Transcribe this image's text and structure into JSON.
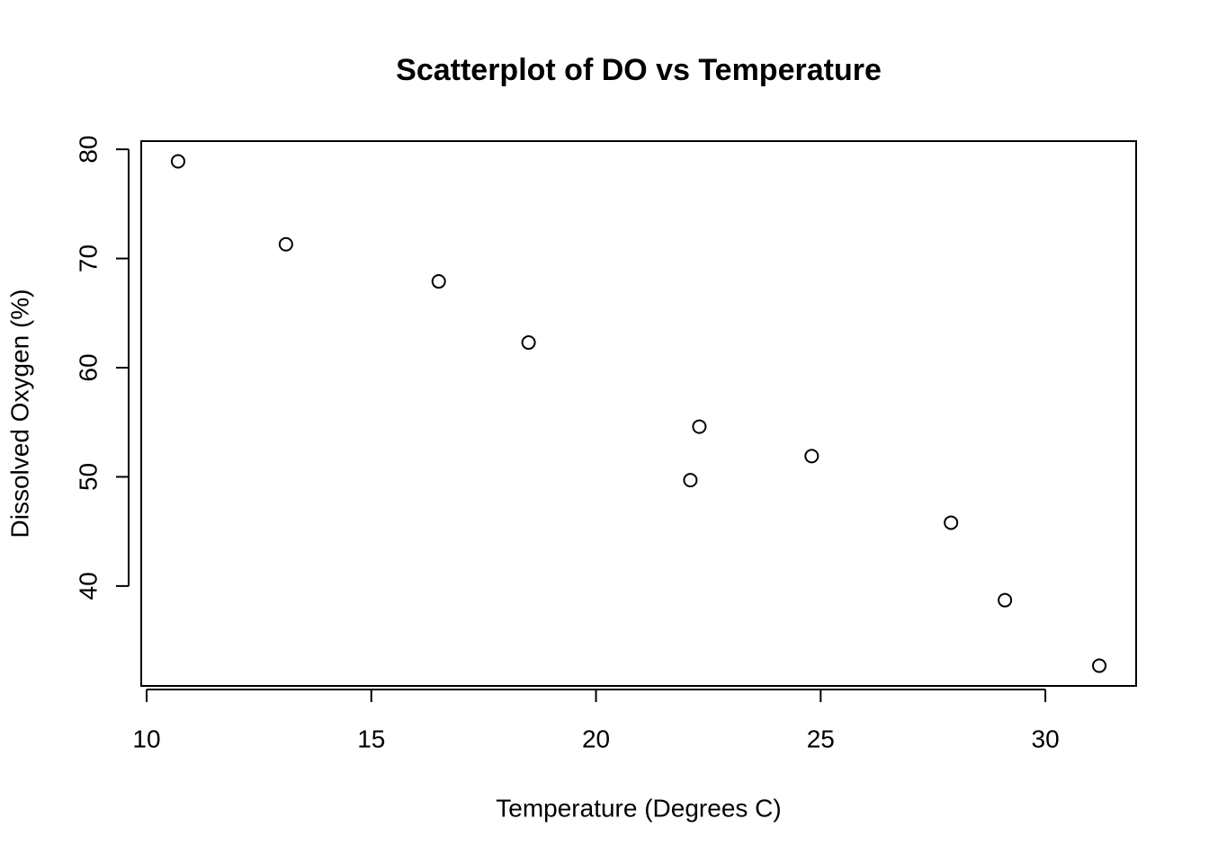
{
  "chart_data": {
    "type": "scatter",
    "title": "Scatterplot of DO vs Temperature",
    "x_label": "Temperature (Degrees C)",
    "y_label": "Dissolved Oxygen (%)",
    "x": [
      10.7,
      13.1,
      16.5,
      18.5,
      22.3,
      22.1,
      24.8,
      27.9,
      29.1,
      31.2
    ],
    "values": [
      78.9,
      71.3,
      67.9,
      62.3,
      54.6,
      49.7,
      51.9,
      45.8,
      38.7,
      32.7
    ],
    "color": "#000000",
    "xlim": [
      9.88,
      32.02
    ],
    "xticks": [
      10,
      15,
      20,
      25,
      30
    ],
    "ylim": [
      30.85,
      80.75
    ],
    "yticks": [
      40,
      50,
      60,
      70,
      80
    ],
    "grid": false
  }
}
